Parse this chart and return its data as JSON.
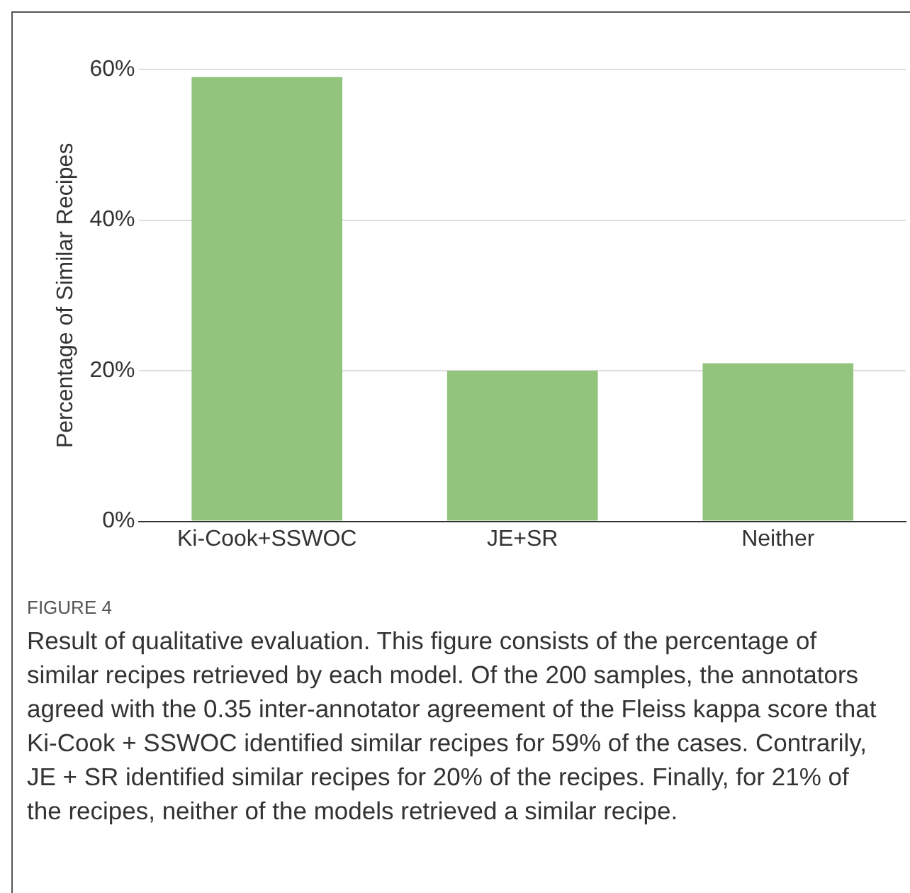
{
  "chart_data": {
    "type": "bar",
    "ylabel": "Percentage of Similar Recipes",
    "categories": [
      "Ki-Cook+SSWOC",
      "JE+SR",
      "Neither"
    ],
    "values": [
      59,
      20,
      21
    ],
    "color": "#93c47d",
    "ylim": [
      0,
      60
    ],
    "yticks": [
      {
        "value": 0,
        "label": "0%"
      },
      {
        "value": 20,
        "label": "20%"
      },
      {
        "value": 40,
        "label": "40%"
      },
      {
        "value": 60,
        "label": "60%"
      }
    ],
    "grid": "y",
    "legend": false,
    "annotations": [
      "FIGURE 4",
      "Result of qualitative evaluation. This figure consists of the percentage of similar recipes retrieved by each model. Of the 200 samples, the annotators agreed with the 0.35 inter-annotator agreement of the Fleiss kappa score that Ki-Cook + SSWOC identified similar recipes for 59% of the cases. Contrarily, JE + SR identified similar recipes for 20% of the recipes. Finally, for 21% of the recipes, neither of the models retrieved a similar recipe."
    ]
  }
}
